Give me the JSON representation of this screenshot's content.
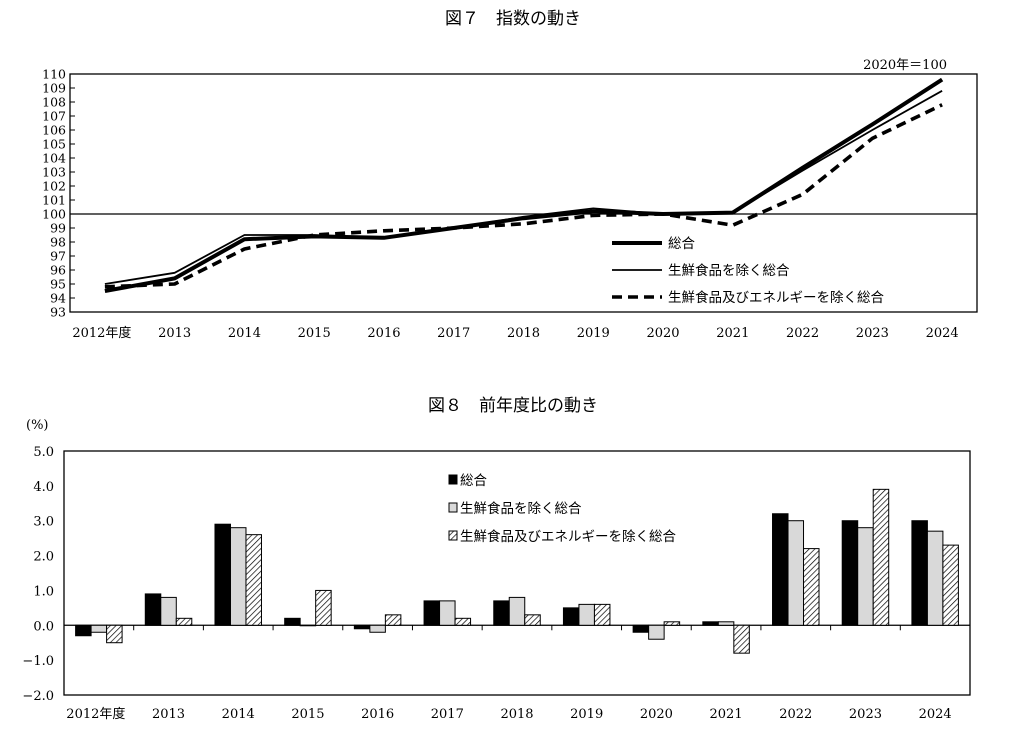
{
  "chart_data": [
    {
      "type": "line",
      "title": "図７　指数の動き",
      "note": "2020年＝100",
      "categories": [
        "2012年度",
        "2013",
        "2014",
        "2015",
        "2016",
        "2017",
        "2018",
        "2019",
        "2020",
        "2021",
        "2022",
        "2023",
        "2024"
      ],
      "ylim": [
        93,
        110
      ],
      "yticks": [
        93,
        94,
        95,
        96,
        97,
        98,
        99,
        100,
        101,
        102,
        103,
        104,
        105,
        106,
        107,
        108,
        109,
        110
      ],
      "reference_line": 100,
      "legend_position": "bottom-right",
      "series": [
        {
          "name": "総合",
          "style": "thick",
          "values": [
            94.5,
            95.4,
            98.2,
            98.4,
            98.3,
            99.0,
            99.7,
            100.2,
            100.0,
            100.1,
            103.3,
            106.4,
            109.6
          ]
        },
        {
          "name": "生鮮食品を除く総合",
          "style": "thin",
          "values": [
            95.0,
            95.8,
            98.5,
            98.5,
            98.3,
            99.0,
            99.8,
            100.4,
            100.0,
            100.1,
            103.1,
            106.0,
            108.8
          ]
        },
        {
          "name": "生鮮食品及びエネルギーを除く総合",
          "style": "dashed",
          "values": [
            94.8,
            95.0,
            97.5,
            98.5,
            98.8,
            99.0,
            99.3,
            99.9,
            100.0,
            99.2,
            101.4,
            105.4,
            107.8
          ]
        }
      ]
    },
    {
      "type": "bar",
      "title": "図８　前年度比の動き",
      "ylabel": "(%)",
      "categories": [
        "2012年度",
        "2013",
        "2014",
        "2015",
        "2016",
        "2017",
        "2018",
        "2019",
        "2020",
        "2021",
        "2022",
        "2023",
        "2024"
      ],
      "ylim": [
        -2.0,
        5.0
      ],
      "yticks": [
        "-2.0",
        "-1.0",
        "0.0",
        "1.0",
        "2.0",
        "3.0",
        "4.0",
        "5.0"
      ],
      "legend_position": "top-center",
      "series": [
        {
          "name": "総合",
          "fill": "#000000",
          "values": [
            -0.3,
            0.9,
            2.9,
            0.2,
            -0.1,
            0.7,
            0.7,
            0.5,
            -0.2,
            0.1,
            3.2,
            3.0,
            3.0
          ]
        },
        {
          "name": "生鮮食品を除く総合",
          "fill": "#d9d9d9",
          "values": [
            -0.2,
            0.8,
            2.8,
            0.0,
            -0.2,
            0.7,
            0.8,
            0.6,
            -0.4,
            0.1,
            3.0,
            2.8,
            2.7
          ]
        },
        {
          "name": "生鮮食品及びエネルギーを除く総合",
          "fill": "hatch",
          "values": [
            -0.5,
            0.2,
            2.6,
            1.0,
            0.3,
            0.2,
            0.3,
            0.6,
            0.1,
            -0.8,
            2.2,
            3.9,
            2.3
          ]
        }
      ]
    }
  ]
}
